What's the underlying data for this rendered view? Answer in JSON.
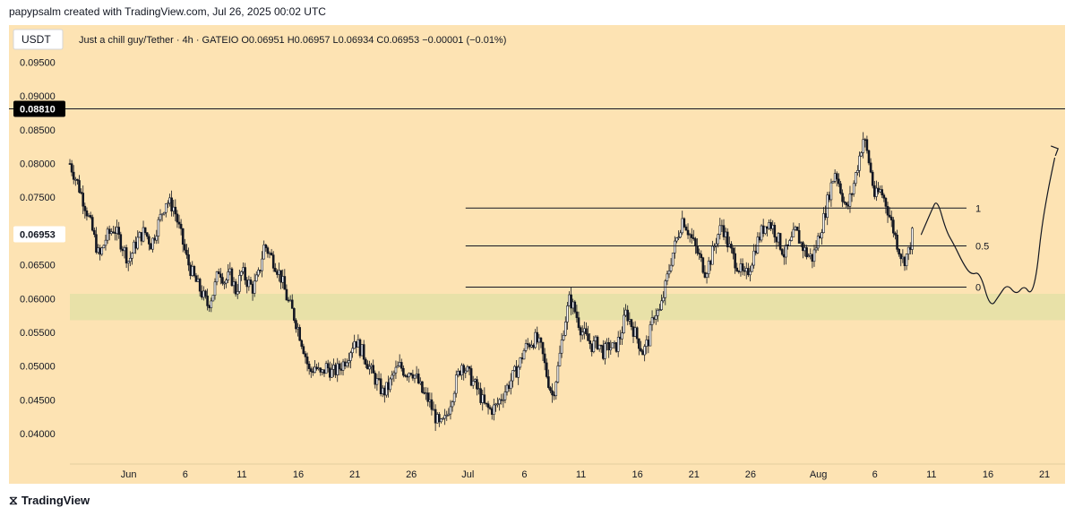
{
  "header": {
    "attribution": "papypsalm created with TradingView.com, Jul 26, 2025 00:02 UTC"
  },
  "legend": {
    "currency": "USDT",
    "info": "Just a chill guy/Tether · 4h · GATEIO  O0.06951  H0.06957  L0.06934  C0.06953  −0.00001 (−0.01%)"
  },
  "footer": {
    "brand": "TradingView",
    "logo_glyph": "⧖"
  },
  "colors": {
    "background": "#fde3b3",
    "zone": "#e6e0a6",
    "candle": "#131722",
    "line": "#131722"
  },
  "chart_data": {
    "type": "candlestick",
    "symbol": "Just a chill guy/Tether",
    "interval": "4h",
    "exchange": "GATEIO",
    "ohlc_last": {
      "open": 0.06951,
      "high": 0.06957,
      "low": 0.06934,
      "close": 0.06953,
      "change": -1e-05,
      "change_pct": -0.01
    },
    "y_axis": {
      "ticks": [
        "0.09500",
        "0.09000",
        "0.08500",
        "0.08000",
        "0.07500",
        "0.06500",
        "0.06000",
        "0.05500",
        "0.05000",
        "0.04500",
        "0.04000"
      ],
      "tick_values": [
        0.095,
        0.09,
        0.085,
        0.08,
        0.075,
        0.065,
        0.06,
        0.055,
        0.05,
        0.045,
        0.04
      ],
      "range": [
        0.0355,
        0.1005
      ]
    },
    "x_axis": {
      "ticks": [
        "Jun",
        "6",
        "11",
        "16",
        "21",
        "26",
        "Jul",
        "6",
        "11",
        "16",
        "21",
        "26",
        "Aug",
        "6",
        "11",
        "16",
        "21"
      ],
      "tick_days": [
        1,
        6,
        11,
        16,
        21,
        26,
        31,
        36,
        41,
        46,
        51,
        56,
        62,
        67,
        72,
        77,
        82
      ],
      "day_range": [
        -4.2,
        83.5
      ],
      "note": "day numbers counted from May 31"
    },
    "labels": {
      "horizontal_price": "0.08810",
      "horizontal_price_value": 0.0881,
      "current_price": "0.06953",
      "current_price_value": 0.06953
    },
    "support_zone": {
      "from": 0.0568,
      "to": 0.0607
    },
    "fib": {
      "start_day": 30.8,
      "end_day": 75.1,
      "levels": [
        {
          "label": "1",
          "value": 0.0734
        },
        {
          "label": "0.5",
          "value": 0.0678
        },
        {
          "label": "0",
          "value": 0.0617
        }
      ]
    },
    "price_path": [
      [
        -4.2,
        0.08
      ],
      [
        -3.5,
        0.077
      ],
      [
        -2.8,
        0.0735
      ],
      [
        -2.2,
        0.07
      ],
      [
        -1.6,
        0.066
      ],
      [
        -1.0,
        0.069
      ],
      [
        -0.3,
        0.0705
      ],
      [
        0.4,
        0.068
      ],
      [
        1.0,
        0.0655
      ],
      [
        1.7,
        0.0685
      ],
      [
        2.4,
        0.07
      ],
      [
        3.0,
        0.068
      ],
      [
        3.8,
        0.072
      ],
      [
        4.3,
        0.0745
      ],
      [
        5.0,
        0.0735
      ],
      [
        5.6,
        0.0695
      ],
      [
        6.2,
        0.0655
      ],
      [
        6.8,
        0.063
      ],
      [
        7.4,
        0.061
      ],
      [
        8.0,
        0.059
      ],
      [
        8.5,
        0.061
      ],
      [
        9.0,
        0.0645
      ],
      [
        9.5,
        0.0625
      ],
      [
        10.0,
        0.0635
      ],
      [
        10.5,
        0.061
      ],
      [
        11.0,
        0.064
      ],
      [
        11.5,
        0.0625
      ],
      [
        12.0,
        0.0615
      ],
      [
        12.5,
        0.0635
      ],
      [
        13.0,
        0.068
      ],
      [
        13.5,
        0.0665
      ],
      [
        14.0,
        0.065
      ],
      [
        14.5,
        0.063
      ],
      [
        15.0,
        0.06
      ],
      [
        15.5,
        0.058
      ],
      [
        16.0,
        0.0555
      ],
      [
        16.5,
        0.0525
      ],
      [
        17.0,
        0.049
      ],
      [
        17.5,
        0.05
      ],
      [
        18.0,
        0.0485
      ],
      [
        18.5,
        0.05
      ],
      [
        19.0,
        0.049
      ],
      [
        19.5,
        0.0495
      ],
      [
        20.0,
        0.0505
      ],
      [
        20.5,
        0.052
      ],
      [
        21.0,
        0.054
      ],
      [
        21.5,
        0.0525
      ],
      [
        22.0,
        0.051
      ],
      [
        22.5,
        0.049
      ],
      [
        23.0,
        0.0475
      ],
      [
        23.5,
        0.046
      ],
      [
        24.0,
        0.047
      ],
      [
        24.5,
        0.049
      ],
      [
        25.0,
        0.05
      ],
      [
        25.5,
        0.049
      ],
      [
        26.0,
        0.0495
      ],
      [
        26.5,
        0.048
      ],
      [
        27.0,
        0.046
      ],
      [
        27.5,
        0.045
      ],
      [
        28.0,
        0.043
      ],
      [
        28.5,
        0.041
      ],
      [
        29.0,
        0.042
      ],
      [
        29.5,
        0.045
      ],
      [
        30.0,
        0.048
      ],
      [
        30.5,
        0.0505
      ],
      [
        31.0,
        0.049
      ],
      [
        31.5,
        0.0475
      ],
      [
        32.0,
        0.046
      ],
      [
        32.5,
        0.044
      ],
      [
        33.0,
        0.0435
      ],
      [
        33.5,
        0.044
      ],
      [
        34.0,
        0.0455
      ],
      [
        34.5,
        0.047
      ],
      [
        35.0,
        0.0485
      ],
      [
        35.5,
        0.05
      ],
      [
        36.0,
        0.0525
      ],
      [
        36.5,
        0.0535
      ],
      [
        37.0,
        0.054
      ],
      [
        37.5,
        0.0525
      ],
      [
        38.0,
        0.0485
      ],
      [
        38.5,
        0.0455
      ],
      [
        39.0,
        0.05
      ],
      [
        39.5,
        0.056
      ],
      [
        40.0,
        0.06
      ],
      [
        40.5,
        0.058
      ],
      [
        41.0,
        0.0555
      ],
      [
        41.5,
        0.054
      ],
      [
        42.0,
        0.053
      ],
      [
        42.5,
        0.0535
      ],
      [
        43.0,
        0.052
      ],
      [
        43.5,
        0.053
      ],
      [
        44.0,
        0.0525
      ],
      [
        44.5,
        0.0545
      ],
      [
        45.0,
        0.058
      ],
      [
        45.5,
        0.056
      ],
      [
        46.0,
        0.054
      ],
      [
        46.5,
        0.052
      ],
      [
        47.0,
        0.054
      ],
      [
        47.5,
        0.058
      ],
      [
        48.0,
        0.058
      ],
      [
        48.5,
        0.062
      ],
      [
        49.0,
        0.066
      ],
      [
        49.5,
        0.069
      ],
      [
        50.0,
        0.072
      ],
      [
        50.5,
        0.07
      ],
      [
        51.0,
        0.068
      ],
      [
        51.5,
        0.066
      ],
      [
        52.0,
        0.064
      ],
      [
        52.5,
        0.066
      ],
      [
        53.0,
        0.069
      ],
      [
        53.5,
        0.071
      ],
      [
        54.0,
        0.068
      ],
      [
        54.5,
        0.066
      ],
      [
        55.0,
        0.0645
      ],
      [
        55.5,
        0.063
      ],
      [
        56.0,
        0.065
      ],
      [
        56.5,
        0.068
      ],
      [
        57.0,
        0.07
      ],
      [
        57.5,
        0.0715
      ],
      [
        58.0,
        0.0705
      ],
      [
        58.5,
        0.0685
      ],
      [
        59.0,
        0.0665
      ],
      [
        59.5,
        0.068
      ],
      [
        60.0,
        0.07
      ],
      [
        60.5,
        0.068
      ],
      [
        61.0,
        0.0665
      ],
      [
        61.5,
        0.066
      ],
      [
        62.0,
        0.069
      ],
      [
        62.5,
        0.072
      ],
      [
        63.0,
        0.076
      ],
      [
        63.5,
        0.079
      ],
      [
        64.0,
        0.076
      ],
      [
        64.5,
        0.073
      ],
      [
        65.0,
        0.076
      ],
      [
        65.5,
        0.08
      ],
      [
        66.0,
        0.084
      ],
      [
        66.5,
        0.08
      ],
      [
        67.0,
        0.075
      ],
      [
        67.5,
        0.076
      ],
      [
        68.0,
        0.074
      ],
      [
        68.5,
        0.071
      ],
      [
        69.0,
        0.068
      ],
      [
        69.5,
        0.0655
      ],
      [
        70.0,
        0.067
      ],
      [
        70.3,
        0.0695
      ]
    ],
    "projection_path": [
      [
        71.1,
        0.0695
      ],
      [
        72.0,
        0.073
      ],
      [
        72.5,
        0.0748
      ],
      [
        73.3,
        0.07
      ],
      [
        74.0,
        0.068
      ],
      [
        74.8,
        0.0652
      ],
      [
        75.5,
        0.0635
      ],
      [
        76.3,
        0.064
      ],
      [
        77.2,
        0.0585
      ],
      [
        78.0,
        0.0605
      ],
      [
        78.7,
        0.0622
      ],
      [
        79.5,
        0.0605
      ],
      [
        80.2,
        0.062
      ],
      [
        80.8,
        0.0605
      ],
      [
        81.3,
        0.0635
      ],
      [
        81.7,
        0.07
      ],
      [
        82.3,
        0.076
      ],
      [
        82.9,
        0.0808
      ]
    ],
    "arrow_tip": [
      83.2,
      0.0822
    ]
  }
}
